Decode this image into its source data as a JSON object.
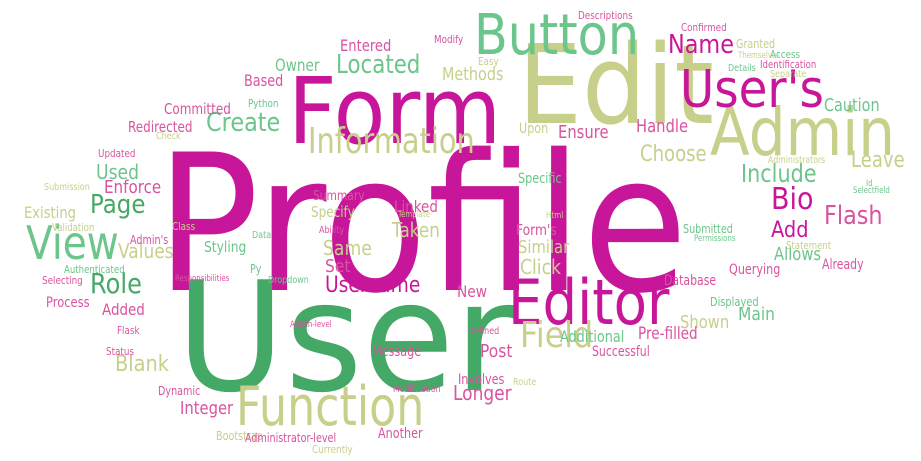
{
  "palette": {
    "magenta": "#c8169b",
    "pink": "#d9539f",
    "green": "#44a866",
    "light_green": "#6cc58b",
    "olive": "#c7cf8a",
    "pale": "#dadfb2"
  },
  "words": [
    {
      "text": "Profile",
      "color": "magenta"
    },
    {
      "text": "User",
      "color": "green"
    },
    {
      "text": "Edit",
      "color": "olive"
    },
    {
      "text": "Form",
      "color": "magenta"
    },
    {
      "text": "Admin",
      "color": "olive"
    },
    {
      "text": "Button",
      "color": "light_green"
    },
    {
      "text": "User's",
      "color": "magenta"
    },
    {
      "text": "Editor",
      "color": "magenta"
    },
    {
      "text": "Function",
      "color": "olive"
    },
    {
      "text": "View",
      "color": "light_green"
    },
    {
      "text": "Information",
      "color": "olive"
    },
    {
      "text": "Field",
      "color": "olive"
    },
    {
      "text": "Create",
      "color": "light_green"
    },
    {
      "text": "Located",
      "color": "light_green"
    },
    {
      "text": "Bio",
      "color": "magenta"
    },
    {
      "text": "Flash",
      "color": "pink"
    },
    {
      "text": "Include",
      "color": "light_green"
    },
    {
      "text": "Name",
      "color": "magenta"
    },
    {
      "text": "Role",
      "color": "green"
    },
    {
      "text": "Page",
      "color": "green"
    },
    {
      "text": "Username",
      "color": "magenta"
    },
    {
      "text": "Blank",
      "color": "olive"
    },
    {
      "text": "Choose",
      "color": "olive"
    },
    {
      "text": "Leave",
      "color": "olive"
    },
    {
      "text": "Longer",
      "color": "pink"
    },
    {
      "text": "Add",
      "color": "magenta"
    },
    {
      "text": "Values",
      "color": "olive"
    },
    {
      "text": "Integer",
      "color": "pink"
    },
    {
      "text": "Used",
      "color": "light_green"
    },
    {
      "text": "Enforce",
      "color": "pink"
    },
    {
      "text": "Methods",
      "color": "olive"
    },
    {
      "text": "Entered",
      "color": "pink"
    },
    {
      "text": "Caution",
      "color": "light_green"
    },
    {
      "text": "Handle",
      "color": "pink"
    },
    {
      "text": "Ensure",
      "color": "pink"
    },
    {
      "text": "Owner",
      "color": "light_green"
    },
    {
      "text": "Based",
      "color": "pink"
    },
    {
      "text": "Committed",
      "color": "pink"
    },
    {
      "text": "Redirected",
      "color": "pink"
    },
    {
      "text": "Existing",
      "color": "olive"
    },
    {
      "text": "Taken",
      "color": "olive"
    },
    {
      "text": "Same",
      "color": "olive"
    },
    {
      "text": "Set",
      "color": "pink"
    },
    {
      "text": "Click",
      "color": "olive"
    },
    {
      "text": "Similar",
      "color": "olive"
    },
    {
      "text": "Allows",
      "color": "light_green"
    },
    {
      "text": "Main",
      "color": "light_green"
    },
    {
      "text": "Shown",
      "color": "olive"
    },
    {
      "text": "Post",
      "color": "pink"
    },
    {
      "text": "New",
      "color": "pink"
    },
    {
      "text": "Pre-filled",
      "color": "pink"
    },
    {
      "text": "Additional",
      "color": "light_green"
    },
    {
      "text": "Added",
      "color": "pink"
    },
    {
      "text": "Process",
      "color": "pink"
    },
    {
      "text": "Styling",
      "color": "light_green"
    },
    {
      "text": "Linked",
      "color": "pink"
    },
    {
      "text": "Specify",
      "color": "olive"
    },
    {
      "text": "Summary",
      "color": "pink"
    },
    {
      "text": "Form's",
      "color": "pink"
    },
    {
      "text": "Specific",
      "color": "light_green"
    },
    {
      "text": "Upon",
      "color": "olive"
    },
    {
      "text": "Already",
      "color": "pink"
    },
    {
      "text": "Querying",
      "color": "pink"
    },
    {
      "text": "Database",
      "color": "pink"
    },
    {
      "text": "Displayed",
      "color": "light_green"
    },
    {
      "text": "Submitted",
      "color": "light_green"
    },
    {
      "text": "Successful",
      "color": "pink"
    },
    {
      "text": "Message",
      "color": "pink"
    },
    {
      "text": "Involves",
      "color": "pink"
    },
    {
      "text": "Another",
      "color": "pink"
    },
    {
      "text": "Bootstrap",
      "color": "olive"
    },
    {
      "text": "Administrator-level",
      "color": "pink"
    },
    {
      "text": "Currently",
      "color": "olive"
    },
    {
      "text": "Dynamic",
      "color": "pink"
    },
    {
      "text": "Status",
      "color": "pink"
    },
    {
      "text": "Flask",
      "color": "pink"
    },
    {
      "text": "Selecting",
      "color": "pink"
    },
    {
      "text": "Authenticated",
      "color": "light_green"
    },
    {
      "text": "Admin's",
      "color": "pink"
    },
    {
      "text": "Validation",
      "color": "olive"
    },
    {
      "text": "Class",
      "color": "olive"
    },
    {
      "text": "Submission",
      "color": "olive"
    },
    {
      "text": "Updated",
      "color": "pink"
    },
    {
      "text": "Check",
      "color": "olive"
    },
    {
      "text": "Python",
      "color": "light_green"
    },
    {
      "text": "Modify",
      "color": "pink"
    },
    {
      "text": "Easy",
      "color": "olive"
    },
    {
      "text": "Descriptions",
      "color": "pink"
    },
    {
      "text": "Confirmed",
      "color": "pink"
    },
    {
      "text": "Granted",
      "color": "olive"
    },
    {
      "text": "Access",
      "color": "light_green"
    },
    {
      "text": "Identification",
      "color": "pink"
    },
    {
      "text": "Themselves",
      "color": "olive"
    },
    {
      "text": "Details",
      "color": "light_green"
    },
    {
      "text": "Separate",
      "color": "olive"
    },
    {
      "text": "Administrators",
      "color": "olive"
    },
    {
      "text": "Statement",
      "color": "olive"
    },
    {
      "text": "Permissions",
      "color": "light_green"
    },
    {
      "text": "Selectfield",
      "color": "light_green"
    },
    {
      "text": "Id",
      "color": "light_green"
    },
    {
      "text": "Data",
      "color": "light_green"
    },
    {
      "text": "Ability",
      "color": "pink"
    },
    {
      "text": "Template",
      "color": "olive"
    },
    {
      "text": "Html",
      "color": "olive"
    },
    {
      "text": "Py",
      "color": "light_green"
    },
    {
      "text": "Responsibilities",
      "color": "pink"
    },
    {
      "text": "Dropdown",
      "color": "light_green"
    },
    {
      "text": "Admin-level",
      "color": "pink"
    },
    {
      "text": "Defined",
      "color": "pink"
    },
    {
      "text": "Modification",
      "color": "pink"
    },
    {
      "text": "Route",
      "color": "olive"
    }
  ]
}
